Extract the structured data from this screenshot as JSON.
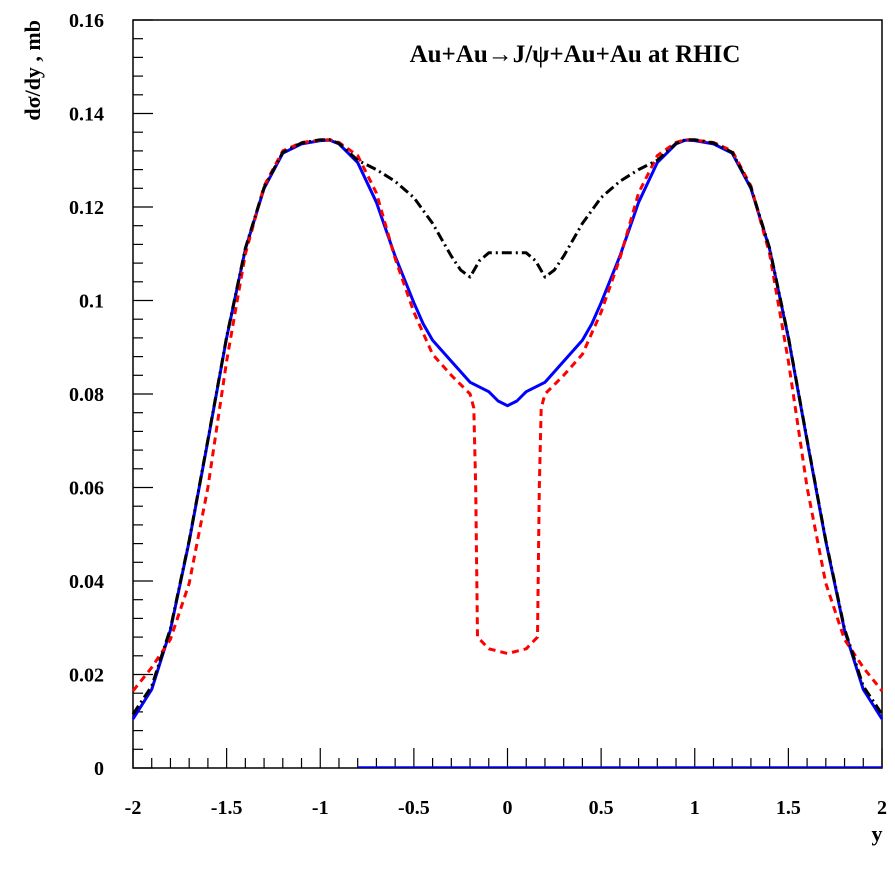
{
  "chart_data": {
    "type": "line",
    "title": "Au+Au→J/ψ+Au+Au at RHIC",
    "xlabel": "y",
    "ylabel": "dσ/dy , mb",
    "xlim": [
      -2,
      2
    ],
    "ylim": [
      0,
      0.16
    ],
    "x_ticks": [
      "-2",
      "-1.5",
      "-1",
      "-0.5",
      "0",
      "0.5",
      "1",
      "1.5",
      "2"
    ],
    "y_ticks": [
      "0",
      "0.02",
      "0.04",
      "0.06",
      "0.08",
      "0.1",
      "0.12",
      "0.14",
      "0.16"
    ],
    "grid": false,
    "series": [
      {
        "color": "#0000ff",
        "style": "solid",
        "x": [
          -2,
          -1.9,
          -1.8,
          -1.7,
          -1.6,
          -1.5,
          -1.4,
          -1.3,
          -1.2,
          -1.1,
          -1.0,
          -0.95,
          -0.9,
          -0.8,
          -0.7,
          -0.6,
          -0.5,
          -0.45,
          -0.4,
          -0.3,
          -0.2,
          -0.1,
          -0.05,
          0,
          0.05,
          0.1,
          0.2,
          0.3,
          0.4,
          0.45,
          0.5,
          0.6,
          0.7,
          0.8,
          0.9,
          0.95,
          1.0,
          1.1,
          1.2,
          1.3,
          1.4,
          1.5,
          1.6,
          1.7,
          1.8,
          1.9,
          2
        ],
        "y": [
          0.0105,
          0.0168,
          0.0295,
          0.0485,
          0.07,
          0.092,
          0.111,
          0.124,
          0.1315,
          0.1335,
          0.1342,
          0.1343,
          0.1335,
          0.1295,
          0.121,
          0.1095,
          0.0995,
          0.095,
          0.0915,
          0.087,
          0.0825,
          0.0805,
          0.0785,
          0.0775,
          0.0785,
          0.0805,
          0.0825,
          0.087,
          0.0915,
          0.095,
          0.0995,
          0.1095,
          0.121,
          0.1295,
          0.1335,
          0.1343,
          0.1342,
          0.1335,
          0.1315,
          0.124,
          0.111,
          0.092,
          0.07,
          0.0485,
          0.0295,
          0.0168,
          0.0105
        ]
      },
      {
        "color": "#ff0000",
        "style": "dashed",
        "x": [
          -2,
          -1.9,
          -1.8,
          -1.7,
          -1.6,
          -1.5,
          -1.4,
          -1.3,
          -1.2,
          -1.1,
          -1.0,
          -0.95,
          -0.9,
          -0.8,
          -0.7,
          -0.6,
          -0.5,
          -0.4,
          -0.3,
          -0.2,
          -0.18,
          -0.17,
          -0.16,
          -0.1,
          0,
          0.1,
          0.16,
          0.17,
          0.18,
          0.2,
          0.3,
          0.4,
          0.5,
          0.6,
          0.7,
          0.8,
          0.9,
          0.95,
          1.0,
          1.1,
          1.2,
          1.3,
          1.4,
          1.5,
          1.6,
          1.7,
          1.8,
          1.9,
          2
        ],
        "y": [
          0.0165,
          0.0215,
          0.0275,
          0.0395,
          0.06,
          0.087,
          0.11,
          0.1245,
          0.132,
          0.1338,
          0.1343,
          0.1344,
          0.1338,
          0.131,
          0.123,
          0.109,
          0.0975,
          0.0885,
          0.084,
          0.08,
          0.077,
          0.06,
          0.028,
          0.0255,
          0.0245,
          0.0255,
          0.028,
          0.06,
          0.077,
          0.08,
          0.084,
          0.0885,
          0.0975,
          0.109,
          0.123,
          0.131,
          0.1338,
          0.1344,
          0.1343,
          0.1338,
          0.132,
          0.1245,
          0.11,
          0.087,
          0.06,
          0.0395,
          0.0275,
          0.0215,
          0.0165
        ]
      },
      {
        "color": "#000000",
        "style": "dash-dot",
        "x": [
          -2,
          -1.9,
          -1.8,
          -1.7,
          -1.6,
          -1.5,
          -1.4,
          -1.3,
          -1.2,
          -1.1,
          -1.0,
          -0.95,
          -0.9,
          -0.8,
          -0.7,
          -0.6,
          -0.5,
          -0.4,
          -0.3,
          -0.25,
          -0.2,
          -0.15,
          -0.1,
          0,
          0.1,
          0.15,
          0.2,
          0.25,
          0.3,
          0.4,
          0.5,
          0.6,
          0.7,
          0.8,
          0.9,
          0.95,
          1.0,
          1.1,
          1.2,
          1.3,
          1.4,
          1.5,
          1.6,
          1.7,
          1.8,
          1.9,
          2
        ],
        "y": [
          0.0115,
          0.0175,
          0.0298,
          0.0487,
          0.0702,
          0.0922,
          0.1112,
          0.1242,
          0.1317,
          0.1337,
          0.1344,
          0.1344,
          0.1336,
          0.13,
          0.128,
          0.1255,
          0.122,
          0.1165,
          0.1095,
          0.1065,
          0.105,
          0.1085,
          0.1102,
          0.1102,
          0.1102,
          0.1085,
          0.105,
          0.1065,
          0.1095,
          0.1165,
          0.122,
          0.1255,
          0.128,
          0.13,
          0.1336,
          0.1344,
          0.1344,
          0.1337,
          0.1317,
          0.1242,
          0.1112,
          0.0922,
          0.0702,
          0.0487,
          0.0298,
          0.0175,
          0.0115
        ]
      }
    ]
  }
}
